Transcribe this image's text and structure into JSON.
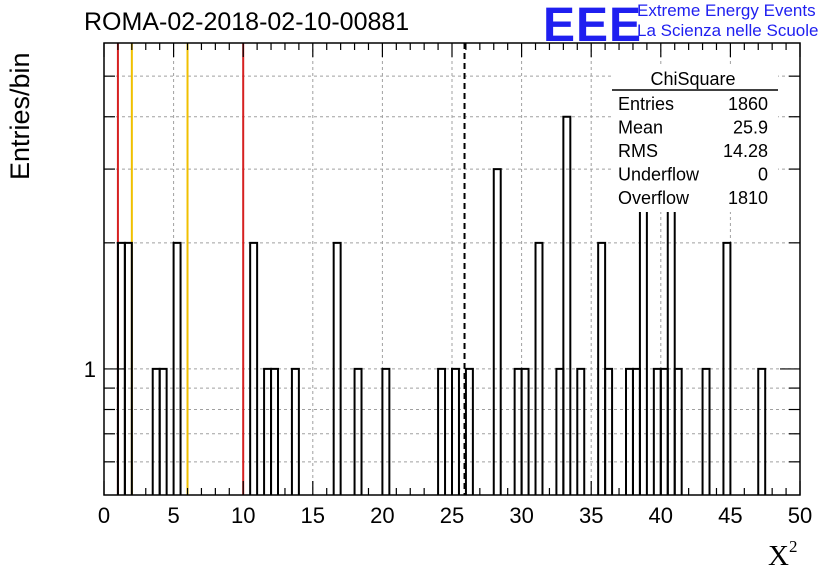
{
  "chart_data": {
    "type": "histogram",
    "title": "ROMA-02-2018-02-10-00881",
    "xlabel": "X",
    "xlabel_superscript": "2",
    "ylabel": "Entries/bin",
    "xlim": [
      0,
      50
    ],
    "ylim": [
      0.5,
      6.0
    ],
    "y_scale": "log",
    "grid": true,
    "x_ticks": [
      0,
      5,
      10,
      15,
      20,
      25,
      30,
      35,
      40,
      45,
      50
    ],
    "y_tick_labels": [
      {
        "value": 1,
        "label": "1"
      }
    ],
    "bin_width": 0.5,
    "bins": [
      {
        "x": 1.0,
        "count": 2
      },
      {
        "x": 1.5,
        "count": 2
      },
      {
        "x": 3.5,
        "count": 1
      },
      {
        "x": 4.0,
        "count": 1
      },
      {
        "x": 5.0,
        "count": 2
      },
      {
        "x": 10.5,
        "count": 2
      },
      {
        "x": 11.5,
        "count": 1
      },
      {
        "x": 12.0,
        "count": 1
      },
      {
        "x": 13.5,
        "count": 1
      },
      {
        "x": 16.5,
        "count": 2
      },
      {
        "x": 18.0,
        "count": 1
      },
      {
        "x": 20.0,
        "count": 1
      },
      {
        "x": 24.0,
        "count": 1
      },
      {
        "x": 25.0,
        "count": 1
      },
      {
        "x": 26.0,
        "count": 1
      },
      {
        "x": 28.0,
        "count": 3
      },
      {
        "x": 29.5,
        "count": 1
      },
      {
        "x": 30.0,
        "count": 1
      },
      {
        "x": 31.0,
        "count": 2
      },
      {
        "x": 32.5,
        "count": 1
      },
      {
        "x": 33.0,
        "count": 4
      },
      {
        "x": 34.0,
        "count": 1
      },
      {
        "x": 35.5,
        "count": 2
      },
      {
        "x": 36.0,
        "count": 1
      },
      {
        "x": 37.5,
        "count": 1
      },
      {
        "x": 38.0,
        "count": 1
      },
      {
        "x": 38.5,
        "count": 3
      },
      {
        "x": 39.5,
        "count": 1
      },
      {
        "x": 40.0,
        "count": 1
      },
      {
        "x": 40.5,
        "count": 3
      },
      {
        "x": 41.0,
        "count": 1
      },
      {
        "x": 43.0,
        "count": 1
      },
      {
        "x": 44.5,
        "count": 2
      },
      {
        "x": 47.0,
        "count": 1
      }
    ],
    "vertical_lines": [
      {
        "x": 1.0,
        "color": "#d62020",
        "style": "solid"
      },
      {
        "x": 2.0,
        "color": "#f0c000",
        "style": "solid"
      },
      {
        "x": 6.0,
        "color": "#f0c000",
        "style": "solid"
      },
      {
        "x": 10.0,
        "color": "#d62020",
        "style": "solid"
      },
      {
        "x": 25.9,
        "color": "#000000",
        "style": "dashed"
      }
    ],
    "stats_box": {
      "name": "ChiSquare",
      "rows": [
        {
          "label": "Entries",
          "value": "1860"
        },
        {
          "label": "Mean",
          "value": "25.9"
        },
        {
          "label": "RMS",
          "value": "14.28"
        },
        {
          "label": "Underflow",
          "value": "0"
        },
        {
          "label": "Overflow",
          "value": "1810"
        }
      ]
    }
  },
  "logo": {
    "mark": "EEE",
    "line1": "Extreme Energy Events",
    "line2": "La Scienza nelle Scuole"
  }
}
